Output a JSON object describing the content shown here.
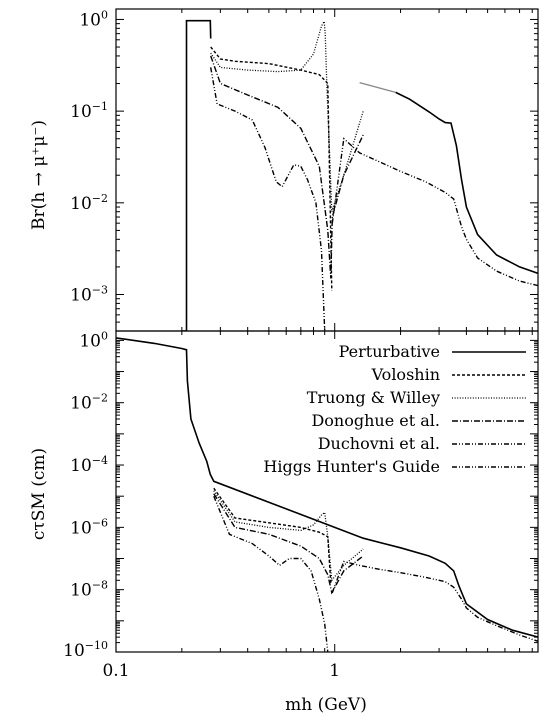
{
  "chart_data": [
    {
      "type": "line",
      "panel": "top",
      "ylabel": "Br(h → μ⁺μ⁻)",
      "xlabel": "",
      "xscale": "log",
      "yscale": "log",
      "xlim": [
        0.1,
        8.5
      ],
      "ylim": [
        0.0004,
        1.3
      ],
      "yticks": [
        {
          "b": "10",
          "e": "0",
          "v": 1
        },
        {
          "b": "10",
          "e": "−1",
          "v": 0.1
        },
        {
          "b": "10",
          "e": "−2",
          "v": 0.01
        },
        {
          "b": "10",
          "e": "−3",
          "v": 0.001
        }
      ],
      "series": [
        {
          "name": "Perturbative",
          "style": "solid",
          "x": [
            1.9,
            2.2,
            2.7,
            3.0,
            3.2,
            3.4,
            3.6,
            3.8,
            4.0,
            4.5,
            5.5,
            7.0,
            8.5
          ],
          "y": [
            0.16,
            0.135,
            0.098,
            0.082,
            0.075,
            0.074,
            0.042,
            0.018,
            0.009,
            0.0045,
            0.0027,
            0.002,
            0.0017
          ]
        },
        {
          "name": "Perturbative (threshold)",
          "style": "solid",
          "legend": false,
          "x": [
            0.2,
            0.2101,
            0.2101,
            0.27,
            0.271
          ],
          "y": [
            0.0004,
            0.0004,
            0.97,
            0.97,
            0.62
          ]
        },
        {
          "name": "Perturbative (light)",
          "style": "solid-light",
          "legend": false,
          "x": [
            1.3,
            1.9
          ],
          "y": [
            0.205,
            0.16
          ]
        },
        {
          "name": "Voloshin",
          "style": "dashed",
          "x": [
            0.271,
            0.3,
            0.35,
            0.5,
            0.7,
            0.85,
            0.93,
            0.97
          ],
          "y": [
            0.5,
            0.37,
            0.35,
            0.33,
            0.28,
            0.25,
            0.2,
            0.0011
          ]
        },
        {
          "name": "Truong & Willey",
          "style": "dotted",
          "x": [
            0.271,
            0.3,
            0.4,
            0.55,
            0.7,
            0.8,
            0.87,
            0.895,
            0.905,
            0.92,
            0.95,
            0.97,
            1.1,
            1.35
          ],
          "y": [
            0.43,
            0.3,
            0.28,
            0.27,
            0.28,
            0.42,
            0.85,
            0.95,
            0.7,
            0.2,
            0.03,
            0.008,
            0.02,
            0.1
          ]
        },
        {
          "name": "Donoghue et al.",
          "style": "dashdot",
          "x": [
            0.271,
            0.3,
            0.4,
            0.55,
            0.7,
            0.85,
            0.93,
            0.96,
            0.975,
            1.1,
            1.35
          ],
          "y": [
            0.4,
            0.2,
            0.15,
            0.11,
            0.065,
            0.025,
            0.005,
            0.0015,
            0.007,
            0.02,
            0.055
          ]
        },
        {
          "name": "Duchovni et al.",
          "style": "dashdotdot",
          "x": [
            0.271,
            0.29,
            0.35,
            0.42,
            0.48,
            0.54,
            0.575,
            0.65,
            0.7,
            0.75,
            0.82,
            0.87,
            0.9
          ],
          "y": [
            0.3,
            0.12,
            0.1,
            0.08,
            0.04,
            0.017,
            0.015,
            0.026,
            0.025,
            0.018,
            0.01,
            0.003,
            0.0004
          ]
        },
        {
          "name": "Higgs Hunter's Guide",
          "style": "dashdotdot",
          "x": [
            0.975,
            1.1,
            1.3,
            1.6,
            2.0,
            2.6,
            3.2,
            3.5,
            3.8,
            4.0,
            4.5,
            5.5,
            7.0,
            8.5
          ],
          "y": [
            0.006,
            0.05,
            0.035,
            0.028,
            0.022,
            0.017,
            0.013,
            0.011,
            0.0055,
            0.004,
            0.0025,
            0.0018,
            0.0014,
            0.00125
          ]
        }
      ]
    },
    {
      "type": "line",
      "panel": "bottom",
      "ylabel": "cτSM (cm)",
      "xlabel": "m_h (GeV)",
      "xscale": "log",
      "yscale": "log",
      "xlim": [
        0.1,
        8.5
      ],
      "ylim": [
        1e-10,
        2
      ],
      "xticks": [
        {
          "label": "0.1",
          "v": 0.1
        },
        {
          "label": "1",
          "v": 1
        }
      ],
      "yticks": [
        {
          "b": "10",
          "e": "0",
          "v": 1
        },
        {
          "b": "10",
          "e": "−2",
          "v": 0.01
        },
        {
          "b": "10",
          "e": "−4",
          "v": 0.0001
        },
        {
          "b": "10",
          "e": "−6",
          "v": 1e-06
        },
        {
          "b": "10",
          "e": "−8",
          "v": 1e-08
        },
        {
          "b": "10",
          "e": "−10",
          "v": 1e-10
        }
      ],
      "series": [
        {
          "name": "Perturbative",
          "style": "solid",
          "x": [
            0.1,
            0.15,
            0.2,
            0.21,
            0.212,
            0.22,
            0.24,
            0.26,
            0.27,
            0.28,
            1.35,
            2.0,
            2.7,
            3.2,
            3.5,
            3.7,
            4.0,
            5.0,
            6.5,
            8.5
          ],
          "y": [
            1.2,
            0.8,
            0.55,
            0.5,
            0.05,
            0.003,
            0.0005,
            0.00013,
            5e-05,
            3e-05,
            4.5e-07,
            2.2e-07,
            1.2e-07,
            7e-08,
            4e-08,
            1.3e-08,
            3.5e-09,
            1.1e-09,
            5e-10,
            3e-10
          ]
        },
        {
          "name": "Voloshin",
          "style": "dashed",
          "x": [
            0.28,
            0.35,
            0.5,
            0.7,
            0.85,
            0.93,
            0.96
          ],
          "y": [
            1.8e-05,
            2e-06,
            1.4e-06,
            1e-06,
            7e-07,
            5e-07,
            1.5e-08
          ]
        },
        {
          "name": "Truong & Willey",
          "style": "dotted",
          "x": [
            0.28,
            0.35,
            0.5,
            0.7,
            0.8,
            0.87,
            0.9,
            0.93,
            0.97,
            1.1,
            1.35
          ],
          "y": [
            1.5e-05,
            1.5e-06,
            1e-06,
            8e-07,
            1.2e-06,
            2.5e-06,
            3e-06,
            5e-07,
            2e-08,
            6e-08,
            2e-07
          ]
        },
        {
          "name": "Donoghue et al.",
          "style": "dashdot",
          "x": [
            0.28,
            0.35,
            0.5,
            0.7,
            0.85,
            0.93,
            0.97,
            1.1,
            1.35
          ],
          "y": [
            1.2e-05,
            1e-06,
            6e-07,
            2.5e-07,
            1e-07,
            3e-08,
            8e-09,
            4e-08,
            1.2e-07
          ]
        },
        {
          "name": "Duchovni et al.",
          "style": "dashdotdot",
          "x": [
            0.28,
            0.33,
            0.42,
            0.5,
            0.56,
            0.62,
            0.7,
            0.78,
            0.85,
            0.9,
            0.93
          ],
          "y": [
            1e-05,
            6e-07,
            3e-07,
            1.2e-07,
            6e-08,
            1e-07,
            1e-07,
            4e-08,
            5e-09,
            8e-10,
            1e-10
          ]
        },
        {
          "name": "Higgs Hunter's Guide",
          "style": "dashdotdot",
          "x": [
            0.975,
            1.1,
            1.3,
            1.6,
            2.0,
            2.6,
            3.2,
            3.5,
            3.8,
            4.0,
            4.5,
            5.5,
            7.0,
            8.5
          ],
          "y": [
            8e-09,
            8e-08,
            6e-08,
            4.5e-08,
            3.5e-08,
            2.5e-08,
            1.8e-08,
            1.2e-08,
            5e-09,
            2.6e-09,
            1.3e-09,
            7e-10,
            3.5e-10,
            2.2e-10
          ]
        }
      ]
    }
  ],
  "legend": {
    "placement": "top-right of bottom panel",
    "entries": [
      "Perturbative",
      "Voloshin",
      "Truong & Willey",
      "Donoghue et al.",
      "Duchovni et al.",
      "Higgs Hunter's Guide"
    ]
  },
  "labels": {
    "top_ylabel": "Br(h → μ⁺μ⁻)",
    "bottom_ylabel": "cτSM (cm)",
    "xlabel": "mh (GeV)"
  }
}
